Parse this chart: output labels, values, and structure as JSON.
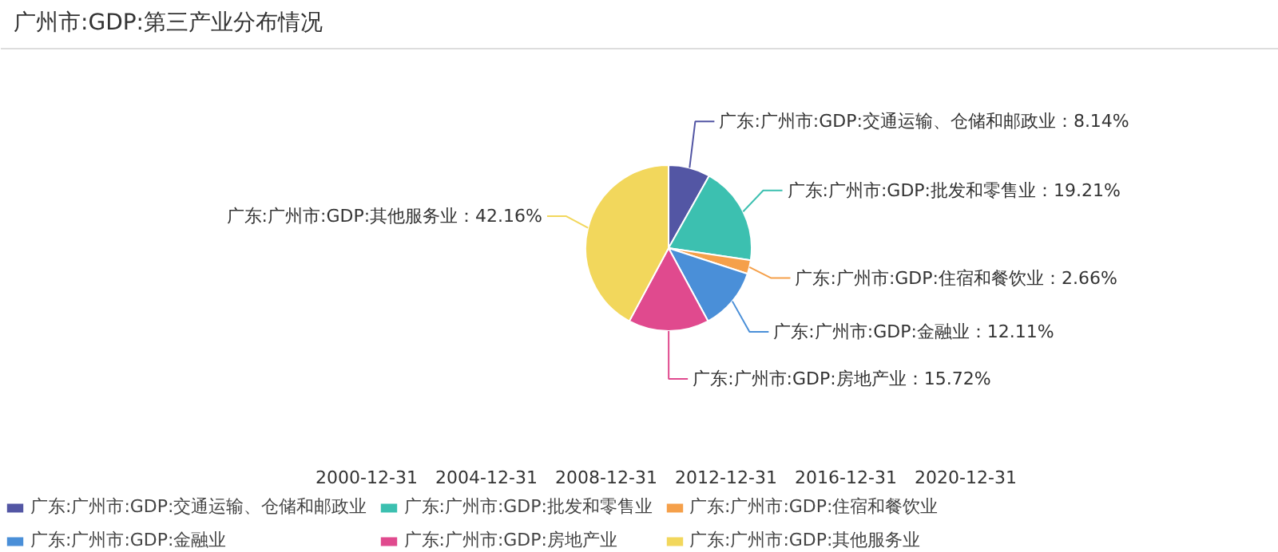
{
  "chart_data": {
    "type": "pie",
    "title": "广州市:GDP:第三产业分布情况",
    "categories": [
      "广东:广州市:GDP:交通运输、仓储和邮政业",
      "广东:广州市:GDP:批发和零售业",
      "广东:广州市:GDP:住宿和餐饮业",
      "广东:广州市:GDP:金融业",
      "广东:广州市:GDP:房地产业",
      "广东:广州市:GDP:其他服务业"
    ],
    "values": [
      8.14,
      19.21,
      2.66,
      12.11,
      15.72,
      42.16
    ],
    "value_labels": [
      "：8.14%",
      "：19.21%",
      "：2.66%",
      "：12.11%",
      "：15.72%",
      "：42.16%"
    ],
    "colors": [
      "#5356a4",
      "#3cc0b0",
      "#f5a04a",
      "#4a8fd8",
      "#e04a8e",
      "#f2d75c"
    ],
    "legend": "bottom",
    "annotations": [
      "2000-12-31",
      "2004-12-31",
      "2008-12-31",
      "2012-12-31",
      "2016-12-31",
      "2020-12-31"
    ]
  }
}
